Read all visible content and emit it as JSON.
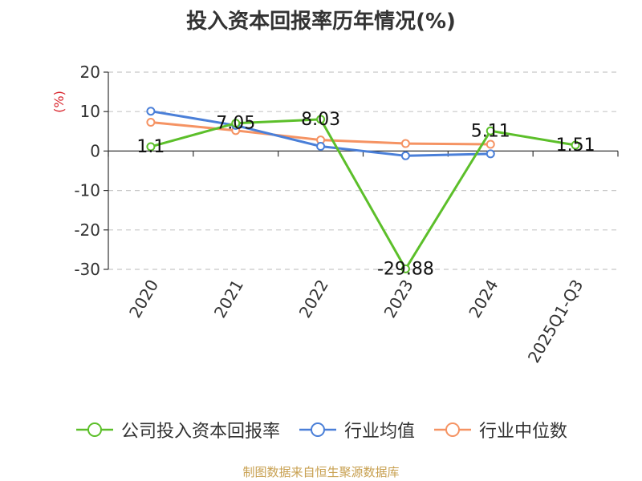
{
  "title": "投入资本回报率历年情况(%)",
  "source_note": "制图数据来自恒生聚源数据库",
  "colors": {
    "company": "#5cbf2a",
    "industry_avg": "#4a7fd8",
    "industry_median": "#f59363",
    "axis_unit": "#d9232b",
    "grid": "#c8c8c8",
    "axis": "#333333"
  },
  "chart_data": {
    "type": "line",
    "title": "投入资本回报率历年情况(%)",
    "ylabel": "(%)",
    "ylim": [
      -30,
      20
    ],
    "yticks": [
      20,
      10,
      0,
      -10,
      -20,
      -30
    ],
    "grid": "horizontal-dashed",
    "legend_position": "bottom",
    "categories": [
      "2020",
      "2021",
      "2022",
      "2023",
      "2024",
      "2025Q1-Q3"
    ],
    "series": [
      {
        "name": "公司投入资本回报率",
        "color_key": "company",
        "values": [
          1.1,
          7.05,
          8.03,
          -29.88,
          5.11,
          1.51
        ],
        "labels": [
          "1.1",
          "7.05",
          "8.03",
          "-29.88",
          "5.11",
          "1.51"
        ]
      },
      {
        "name": "行业均值",
        "color_key": "industry_avg",
        "values": [
          10.1,
          6.5,
          1.2,
          -1.2,
          -0.7,
          null
        ]
      },
      {
        "name": "行业中位数",
        "color_key": "industry_median",
        "values": [
          7.3,
          5.2,
          2.8,
          1.9,
          1.7,
          null
        ]
      }
    ]
  }
}
